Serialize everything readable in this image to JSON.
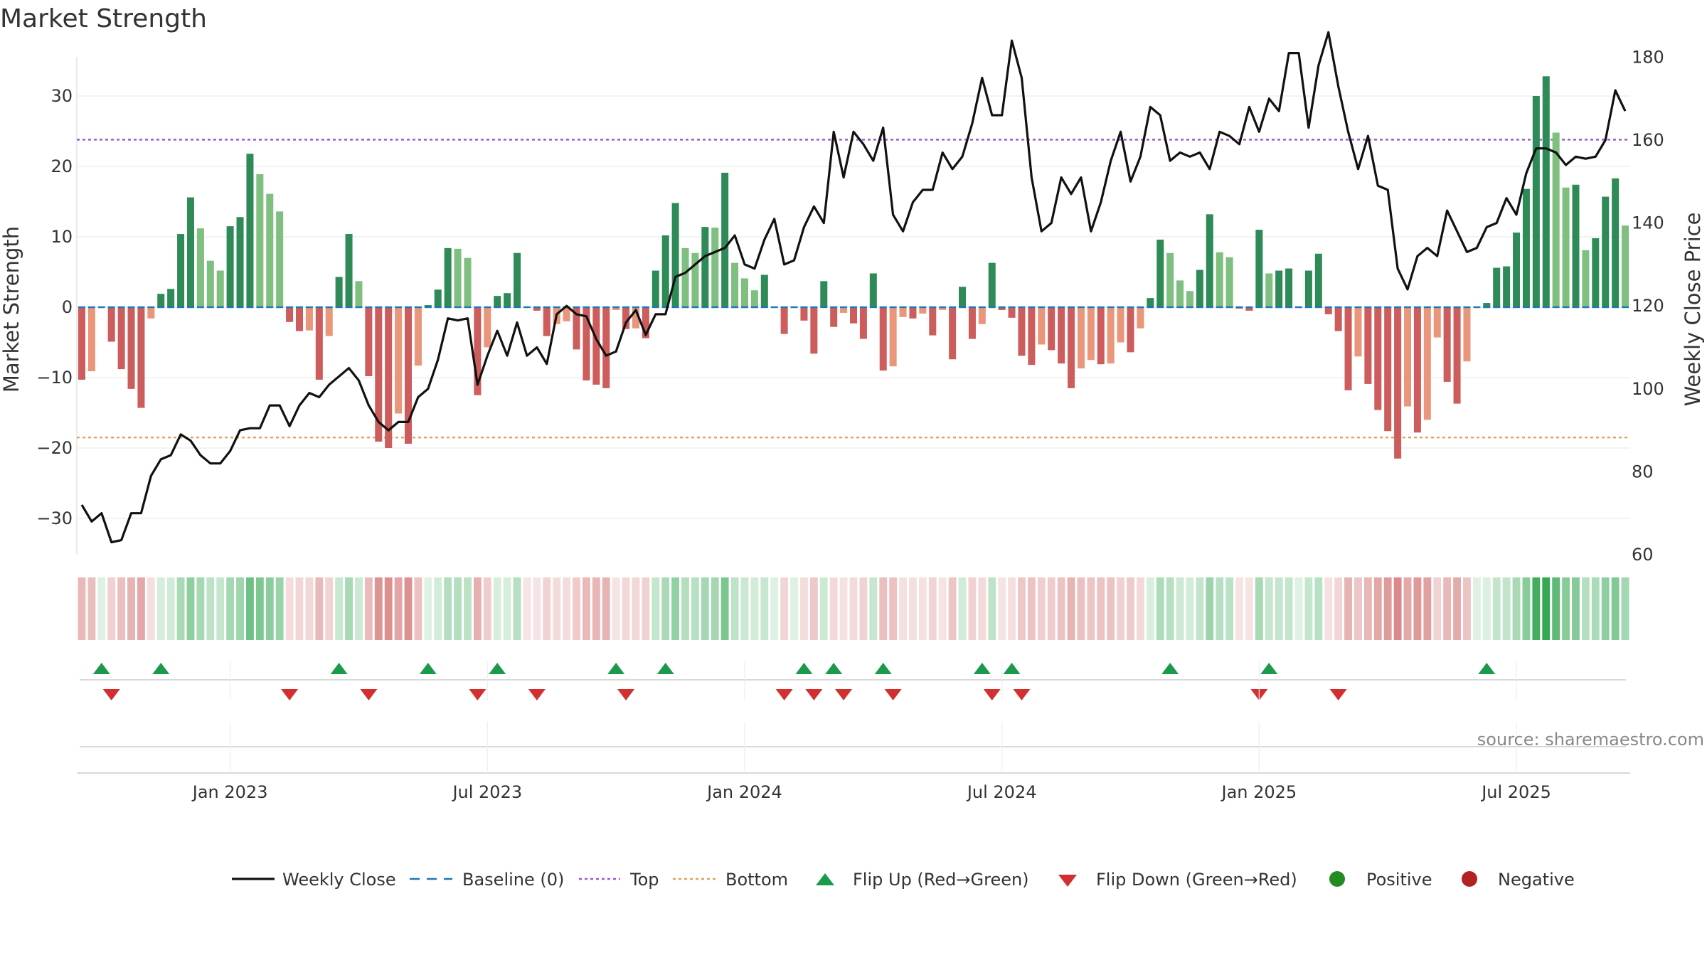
{
  "chart_data": {
    "type": "bar",
    "title": "Market Strength",
    "ylabel": "Market Strength",
    "y2label": "Weekly Close Price",
    "ylim": [
      -35,
      35
    ],
    "y2lim": [
      60,
      180
    ],
    "yticks": [
      30,
      20,
      10,
      0,
      -10,
      -20,
      -30
    ],
    "yticklabels": [
      "30",
      "20",
      "10",
      "0",
      "−10",
      "−20",
      "−30"
    ],
    "y2ticks": [
      180,
      160,
      140,
      120,
      100,
      80,
      60
    ],
    "top_level": 23.8,
    "bottom_level": -18.5,
    "xticklabels": [
      "Jan 2023",
      "Jul 2023",
      "Jan 2024",
      "Jul 2024",
      "Jan 2025",
      "Jul 2025"
    ],
    "xtick_week_index": [
      15,
      41,
      67,
      93,
      119,
      145
    ],
    "strength": [
      -10.3,
      -9.1,
      0,
      -4.9,
      -8.8,
      -11.6,
      -14.3,
      -1.6,
      1.9,
      2.6,
      10.4,
      15.6,
      11.2,
      6.6,
      5.2,
      11.5,
      12.8,
      21.8,
      18.9,
      16.1,
      13.6,
      -2.1,
      -3.4,
      -3.3,
      -10.3,
      -4.1,
      4.3,
      10.4,
      3.7,
      -9.8,
      -19.1,
      -20.0,
      -15.1,
      -19.4,
      -8.3,
      0.3,
      2.5,
      8.4,
      8.3,
      7.0,
      -12.5,
      -5.7,
      1.6,
      2.0,
      7.7,
      -0.1,
      -0.5,
      -4.1,
      -2.4,
      -2.0,
      -6.0,
      -10.4,
      -11.0,
      -11.5,
      -0.4,
      -3.1,
      -3.0,
      -4.4,
      5.2,
      10.2,
      14.8,
      8.4,
      7.7,
      11.4,
      11.3,
      19.1,
      6.3,
      4.1,
      2.4,
      4.6,
      0,
      -3.8,
      0,
      -1.9,
      -6.6,
      3.7,
      -2.8,
      -0.8,
      -2.3,
      -4.5,
      4.8,
      -9.0,
      -8.4,
      -1.4,
      -1.6,
      -0.9,
      -4.0,
      -0.4,
      -7.4,
      2.9,
      -4.5,
      -2.4,
      6.3,
      -0.4,
      -1.5,
      -6.9,
      -8.2,
      -5.3,
      -6.1,
      -8.0,
      -11.5,
      -8.7,
      -7.5,
      -8.1,
      -8.0,
      -5.0,
      -6.4,
      -3.0,
      1.3,
      9.6,
      7.7,
      3.8,
      2.3,
      5.3,
      13.2,
      7.8,
      7.1,
      -0.2,
      -0.5,
      11.0,
      4.8,
      5.2,
      5.5,
      0.1,
      5.2,
      7.6,
      -1.0,
      -3.4,
      -11.8,
      -7.0,
      -10.9,
      -14.6,
      -17.6,
      -21.5,
      -14.1,
      -17.8,
      -16.0,
      -4.3,
      -10.6,
      -13.7,
      -7.7,
      0,
      0.6,
      5.6,
      5.8,
      10.6,
      16.8,
      30.0,
      32.8,
      24.8,
      17.0,
      17.4,
      8.1,
      9.8,
      15.7,
      18.3,
      11.6
    ],
    "close": [
      72,
      68,
      70,
      63,
      63.5,
      70,
      70,
      79,
      83,
      84,
      89,
      87.5,
      84,
      82,
      82,
      85,
      90,
      90.5,
      90.5,
      96,
      96,
      91,
      96,
      99,
      98,
      101,
      103,
      105,
      102,
      96,
      92,
      90,
      92,
      92,
      98,
      100,
      107,
      117,
      116.5,
      117,
      101,
      108,
      114,
      108,
      116,
      108,
      110,
      106,
      118,
      120,
      118,
      117.5,
      112,
      108,
      109,
      116,
      119,
      113,
      118,
      118,
      127,
      128,
      130,
      132,
      133,
      134,
      137,
      130,
      129,
      136,
      141,
      130,
      131,
      139,
      144,
      140,
      162,
      151,
      162,
      159,
      155,
      163,
      142,
      138,
      145,
      148,
      148,
      157,
      153,
      156,
      164,
      175,
      166,
      166,
      184,
      175,
      151,
      138,
      140,
      151,
      147,
      151,
      138,
      145,
      155,
      162,
      150,
      156,
      168,
      166,
      155,
      157,
      156,
      157,
      153,
      162,
      161,
      159,
      168,
      162,
      170,
      167,
      181,
      181,
      163,
      178,
      186,
      173,
      162,
      153,
      161,
      149,
      148,
      129,
      124,
      132,
      134,
      132,
      143,
      138,
      133,
      134,
      139,
      140,
      146,
      142,
      152,
      158,
      158,
      157,
      154,
      156,
      155.5,
      156,
      160,
      172,
      167
    ],
    "flip_up_weeks": [
      2,
      8,
      26,
      35,
      42,
      54,
      59,
      73,
      76,
      81,
      91,
      94,
      110,
      120,
      142
    ],
    "flip_down_weeks": [
      3,
      21,
      29,
      40,
      46,
      55,
      71,
      74,
      77,
      82,
      92,
      95,
      119,
      127
    ],
    "legend": [
      "Weekly Close",
      "Baseline (0)",
      "Top",
      "Bottom",
      "Flip Up (Red→Green)",
      "Flip Down (Green→Red)",
      "Positive",
      "Negative"
    ],
    "legend_placement": "bottom-center",
    "colors": {
      "pos_strong": "#2e8b57",
      "pos_weak": "#7fbf7f",
      "neg_strong": "#cd5c5c",
      "neg_weak": "#e9967a",
      "close": "#111111",
      "baseline": "#1f77b4",
      "top": "#9b59d0",
      "bottom": "#e0a060",
      "flip_up": "#1a9a4a",
      "flip_down": "#d32f2f",
      "positive_dot": "#228b22",
      "negative_dot": "#b22222"
    }
  },
  "source": "source: sharemaestro.com"
}
